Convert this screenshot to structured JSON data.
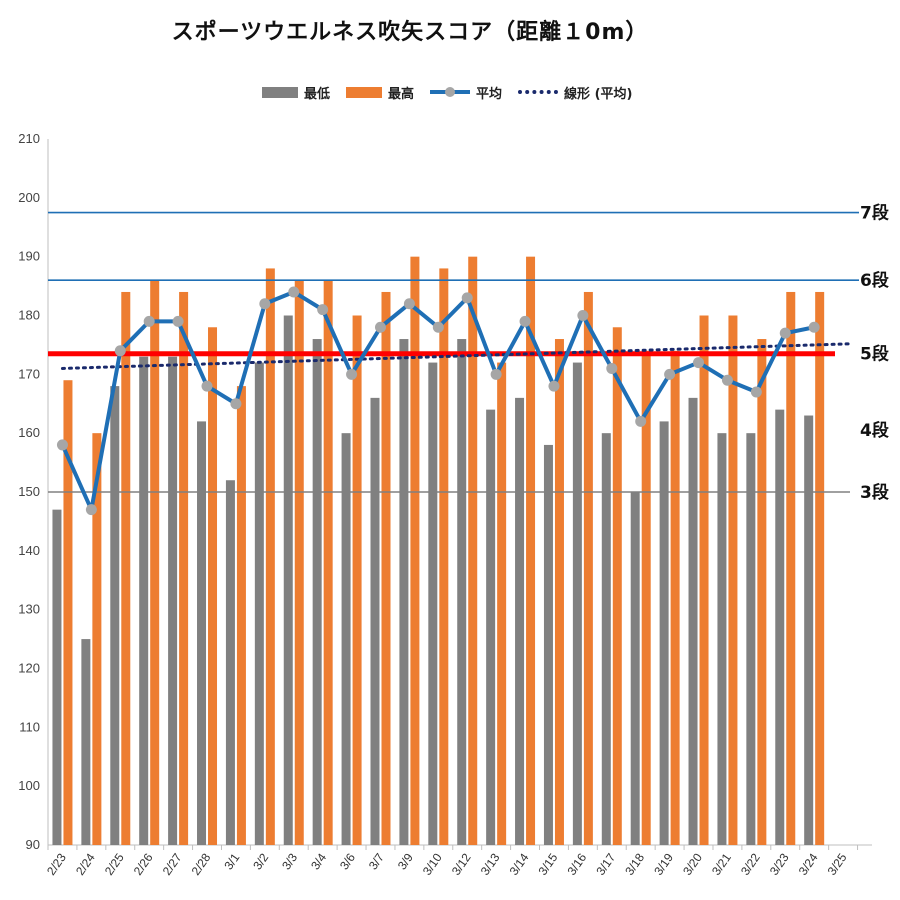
{
  "title": "スポーツウエルネス吹矢スコア（距離１0m）",
  "legend": {
    "min": "最低",
    "max": "最高",
    "avg": "平均",
    "trend": "線形 (平均)"
  },
  "colors": {
    "min": "#808080",
    "max": "#ed7d31",
    "avg_line": "#1f6fb5",
    "avg_marker": "#a6a6a6",
    "trend": "#1a2a6c",
    "threshold": "#ff0000",
    "level_line": "#1f6fb5",
    "level_3": "#808080",
    "level_5_label": "#1f6fb5"
  },
  "chart_data": {
    "type": "bar",
    "title": "スポーツウエルネス吹矢スコア（距離１0m）",
    "categories": [
      "2/23",
      "2/24",
      "2/25",
      "2/26",
      "2/27",
      "2/28",
      "3/1",
      "3/2",
      "3/3",
      "3/4",
      "3/6",
      "3/7",
      "3/9",
      "3/10",
      "3/12",
      "3/13",
      "3/14",
      "3/15",
      "3/16",
      "3/17",
      "3/18",
      "3/19",
      "3/20",
      "3/21",
      "3/22",
      "3/23",
      "3/24",
      "3/25"
    ],
    "ylim": [
      90,
      210
    ],
    "yticks": [
      90,
      100,
      110,
      120,
      130,
      140,
      150,
      160,
      170,
      180,
      190,
      200,
      210
    ],
    "grid": "none",
    "legend_position": "top",
    "series": [
      {
        "name": "最低",
        "type": "bar",
        "values": [
          147,
          125,
          168,
          173,
          173,
          162,
          152,
          172,
          180,
          176,
          160,
          166,
          176,
          172,
          176,
          164,
          166,
          158,
          172,
          160,
          150,
          162,
          166,
          160,
          160,
          164,
          163,
          null
        ]
      },
      {
        "name": "最高",
        "type": "bar",
        "values": [
          169,
          160,
          184,
          186,
          184,
          178,
          168,
          188,
          186,
          186,
          180,
          184,
          190,
          188,
          190,
          172,
          190,
          176,
          184,
          178,
          174,
          174,
          180,
          180,
          176,
          184,
          184,
          null
        ]
      },
      {
        "name": "平均",
        "type": "line",
        "values": [
          158,
          147,
          174,
          179,
          179,
          168,
          165,
          182,
          184,
          181,
          170,
          178,
          182,
          178,
          183,
          170,
          179,
          168,
          180,
          171,
          162,
          170,
          172,
          169,
          167,
          177,
          178,
          null
        ]
      },
      {
        "name": "線形 (平均)",
        "type": "trendline",
        "range": [
          171,
          175.2
        ]
      }
    ],
    "reference_lines": [
      {
        "label": "7段",
        "value": 197.5
      },
      {
        "label": "6段",
        "value": 186
      },
      {
        "label": "5段",
        "value": 173.5
      },
      {
        "label": "4段",
        "value": 160.5
      },
      {
        "label": "3段",
        "value": 150
      }
    ]
  }
}
